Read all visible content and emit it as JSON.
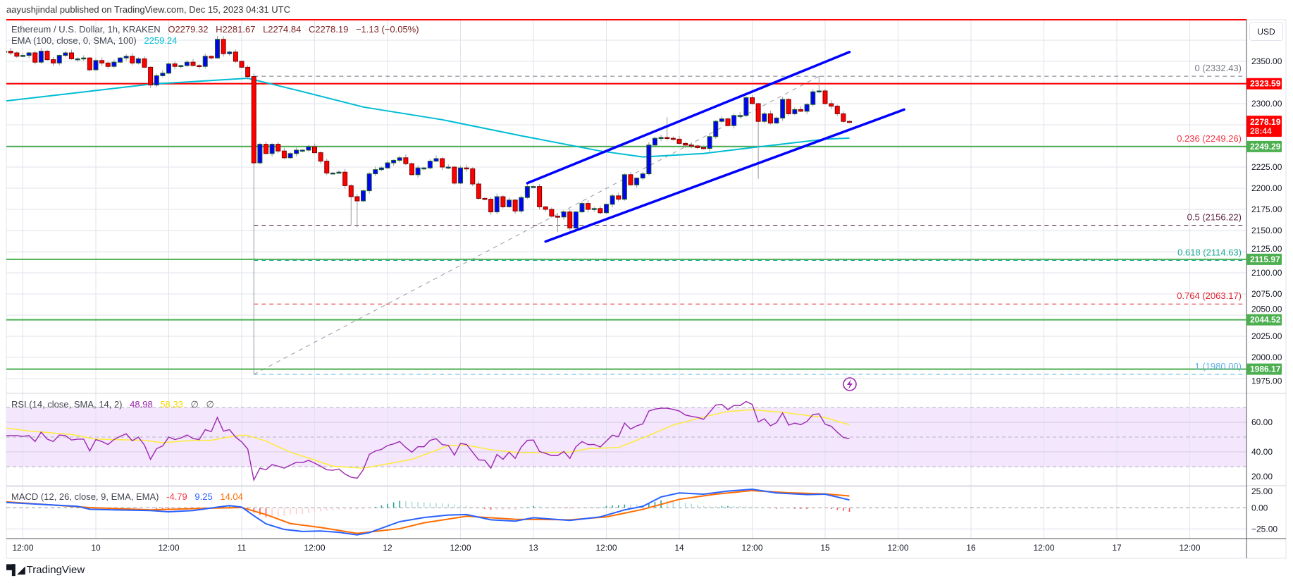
{
  "header": {
    "published": "aayushjindal published on TradingView.com, Dec 15, 2023 04:31 UTC"
  },
  "legend": {
    "symbol": "Ethereum / U.S. Dollar, 1h, KRAKEN",
    "open": "O2279.32",
    "high": "H2281.67",
    "low": "L2274.84",
    "close": "C2278.19",
    "change": "−1.13 (−0.05%)"
  },
  "ema_legend": {
    "label": "EMA (100, close, 0, SMA, 100)",
    "value": "2259.24"
  },
  "rsi_legend": {
    "label": "RSI (14, close, SMA, 14, 2)",
    "value": "48.98",
    "ma": "58.33",
    "extra1": "∅",
    "extra2": "∅"
  },
  "macd_legend": {
    "label": "MACD (12, 26, close, 9, EMA, EMA)",
    "hist": "-4.79",
    "macd": "9.25",
    "signal": "14.04"
  },
  "currency": "USD",
  "footer": {
    "brand": "TradingView",
    "logo_icon": "tradingview-logo"
  },
  "events_icon": "lightning-icon",
  "colors": {
    "up": "#0000ff",
    "down": "#ff0000",
    "ema": "#00bcd4",
    "channel": "#0000ff",
    "rsi": "#9c27b0",
    "rsi_ma": "#ffeb3b",
    "rsi_band": "#f3e6fd",
    "macd": "#2962ff",
    "signal": "#ff6d00",
    "hist_up": "#26a69a",
    "hist_up_weak": "#b2dfdb",
    "hist_down": "#ff5252",
    "hist_down_weak": "#ffcdd2",
    "grid": "#e0e3eb"
  },
  "chart_data": {
    "type": "candlestick",
    "title": "Ethereum / U.S. Dollar, 1h, KRAKEN",
    "y_ticks": [
      2350,
      2300,
      2225,
      2200,
      2175,
      2150,
      2125,
      2100,
      2075,
      2050,
      2025,
      2000,
      1975
    ],
    "x_tick_labels": [
      "12:00",
      "10",
      "12:00",
      "11",
      "12:00",
      "12",
      "12:00",
      "13",
      "12:00",
      "14",
      "12:00",
      "15",
      "12:00",
      "16",
      "12:00",
      "17",
      "12:00"
    ],
    "grid": true,
    "closes": [
      2362,
      2362,
      2360,
      2356,
      2357,
      2360,
      2349,
      2362,
      2352,
      2348,
      2357,
      2360,
      2353,
      2353,
      2354,
      2340,
      2351,
      2348,
      2344,
      2349,
      2354,
      2356,
      2348,
      2353,
      2343,
      2322,
      2333,
      2336,
      2347,
      2344,
      2345,
      2349,
      2345,
      2344,
      2356,
      2354,
      2376,
      2359,
      2361,
      2350,
      2343,
      2332,
      2230,
      2252,
      2241,
      2252,
      2244,
      2236,
      2241,
      2245,
      2245,
      2249,
      2242,
      2232,
      2218,
      2218,
      2219,
      2203,
      2190,
      2185,
      2197,
      2217,
      2222,
      2224,
      2230,
      2233,
      2236,
      2229,
      2216,
      2224,
      2224,
      2232,
      2235,
      2225,
      2225,
      2206,
      2224,
      2223,
      2205,
      2188,
      2187,
      2172,
      2190,
      2178,
      2186,
      2173,
      2189,
      2202,
      2202,
      2178,
      2175,
      2167,
      2166,
      2172,
      2153,
      2172,
      2182,
      2175,
      2176,
      2171,
      2181,
      2191,
      2187,
      2216,
      2204,
      2212,
      2217,
      2251,
      2259,
      2260,
      2259,
      2258,
      2253,
      2251,
      2250,
      2248,
      2247,
      2261,
      2279,
      2282,
      2274,
      2286,
      2286,
      2307,
      2300,
      2279,
      2288,
      2277,
      2283,
      2305,
      2288,
      2293,
      2291,
      2299,
      2314,
      2315,
      2300,
      2297,
      2288,
      2279,
      2278.19
    ],
    "notable_wicks": [
      {
        "time": "Dec 10 20:00",
        "high": 2380
      },
      {
        "time": "Dec 11 18:00",
        "low": 2156
      },
      {
        "time": "Dec 11 19:00",
        "low": 2154
      },
      {
        "time": "Dec 13 04:00",
        "low": 2148
      },
      {
        "time": "Dec 13 22:00",
        "high": 2284
      },
      {
        "time": "Dec 14 13:00",
        "low": 2211
      },
      {
        "time": "Dec 14 23:00",
        "high": 2332.43
      }
    ],
    "last_price": {
      "value": "2278.19",
      "countdown": "28:44"
    },
    "ema100": [
      {
        "t": "Dec 9 09:00",
        "v": 2303
      },
      {
        "t": "Dec 10 09:00",
        "v": 2323
      },
      {
        "t": "Dec 11 01:00",
        "v": 2330
      },
      {
        "t": "Dec 11 09:00",
        "v": 2316
      },
      {
        "t": "Dec 11 20:00",
        "v": 2296
      },
      {
        "t": "Dec 12 09:00",
        "v": 2281
      },
      {
        "t": "Dec 12 22:00",
        "v": 2262
      },
      {
        "t": "Dec 13 11:00",
        "v": 2244
      },
      {
        "t": "Dec 13 18:00",
        "v": 2237
      },
      {
        "t": "Dec 14 04:00",
        "v": 2241
      },
      {
        "t": "Dec 14 12:00",
        "v": 2248
      },
      {
        "t": "Dec 15 00:00",
        "v": 2258
      },
      {
        "t": "Dec 15 04:00",
        "v": 2259.24
      }
    ],
    "horizontal_lines": [
      {
        "price": 2323.59,
        "label": "2323.59",
        "color": "#ff0000"
      },
      {
        "price": 2249.29,
        "label": "2249.29",
        "color": "#4caf50"
      },
      {
        "price": 2115.97,
        "label": "2115.97",
        "color": "#4caf50"
      },
      {
        "price": 2044.52,
        "label": "2044.52",
        "color": "#4caf50"
      },
      {
        "price": 1986.17,
        "label": "1986.17",
        "color": "#4caf50"
      }
    ],
    "fibonacci": {
      "from": {
        "t": "Dec 11 02:00",
        "price": 1980.0
      },
      "to": {
        "t": "Dec 14 23:00",
        "price": 2332.43
      },
      "levels": [
        {
          "label": "0 (2332.43)",
          "price": 2332.43,
          "color": "#787b86"
        },
        {
          "label": "0.236 (2249.26)",
          "price": 2249.26,
          "color": "#f23645"
        },
        {
          "label": "0.5 (2156.22)",
          "price": 2156.22,
          "color": "#5d2340"
        },
        {
          "label": "0.618 (2114.63)",
          "price": 2114.63,
          "color": "#22ab94"
        },
        {
          "label": "0.764 (2063.17)",
          "price": 2063.17,
          "color": "#e0242f"
        },
        {
          "label": "1 (1980.00)",
          "price": 1980.0,
          "color": "#5fb0e6"
        }
      ]
    },
    "channel": {
      "upper": [
        {
          "t": "Dec 12 23:00",
          "price": 2206
        },
        {
          "t": "Dec 15 04:00",
          "price": 2361
        }
      ],
      "lower": [
        {
          "t": "Dec 13 02:00",
          "price": 2137
        },
        {
          "t": "Dec 15 13:00",
          "price": 2293
        }
      ]
    },
    "rsi": {
      "ticks": [
        60,
        40,
        20
      ],
      "bands": [
        70,
        50,
        30
      ],
      "values": [
        51,
        51,
        51,
        50.5,
        51,
        47,
        53.3,
        48.6,
        47,
        51.4,
        51,
        48,
        48.6,
        48.6,
        40.6,
        48.3,
        47,
        45,
        48.3,
        50.5,
        52.2,
        47.5,
        50,
        44.6,
        35,
        42.2,
        44,
        50,
        48.3,
        49.4,
        51.4,
        49,
        48.3,
        55,
        53.7,
        63.3,
        54,
        55,
        50,
        46.7,
        41.9,
        21,
        29,
        27.9,
        31.4,
        30.3,
        29,
        31,
        33,
        32.7,
        34.3,
        32.4,
        30.3,
        27.9,
        27.6,
        28.4,
        25,
        22.9,
        22.2,
        27.9,
        38.3,
        40.6,
        41.7,
        44.3,
        45.4,
        47,
        43,
        39.8,
        43.5,
        43.5,
        47.8,
        48.9,
        44.9,
        44.4,
        37.8,
        45.7,
        45,
        39.8,
        34.6,
        34.3,
        29,
        38.3,
        35,
        39.8,
        35.6,
        43.3,
        47.8,
        48,
        40.3,
        39,
        37.5,
        37.5,
        40.3,
        35.6,
        43.5,
        47,
        44.9,
        45,
        43.3,
        47.3,
        51.3,
        50.2,
        59.4,
        55.4,
        57.6,
        58.9,
        67.6,
        68.9,
        69.5,
        69.5,
        68.7,
        67.6,
        64.9,
        64,
        63.3,
        62,
        66.8,
        71.6,
        72.1,
        68.6,
        71.4,
        71.3,
        74,
        72,
        60.2,
        62.4,
        57.6,
        59.7,
        66.3,
        58.1,
        59.4,
        58.4,
        60.5,
        65.2,
        65.7,
        58.7,
        57.3,
        53.3,
        49.7,
        48.98
      ],
      "ma": [
        {
          "t": "Dec 9 09:00",
          "v": 56.2
        },
        {
          "t": "Dec 9 13:00",
          "v": 54.1
        },
        {
          "t": "Dec 9 20:00",
          "v": 51.7
        },
        {
          "t": "Dec 10 00:00",
          "v": 48.6
        },
        {
          "t": "Dec 10 05:00",
          "v": 48.1
        },
        {
          "t": "Dec 10 08:00",
          "v": 47.8
        },
        {
          "t": "Dec 10 11:00",
          "v": 46.2
        },
        {
          "t": "Dec 10 16:00",
          "v": 47.8
        },
        {
          "t": "Dec 10 19:00",
          "v": 47.8
        },
        {
          "t": "Dec 10 21:00",
          "v": 49.4
        },
        {
          "t": "Dec 11 00:00",
          "v": 51.3
        },
        {
          "t": "Dec 11 01:00",
          "v": 51
        },
        {
          "t": "Dec 11 04:00",
          "v": 47.3
        },
        {
          "t": "Dec 11 08:00",
          "v": 39.8
        },
        {
          "t": "Dec 11 11:00",
          "v": 35.9
        },
        {
          "t": "Dec 11 15:00",
          "v": 30.3
        },
        {
          "t": "Dec 11 20:00",
          "v": 29
        },
        {
          "t": "Dec 12 00:00",
          "v": 31.9
        },
        {
          "t": "Dec 12 04:00",
          "v": 35
        },
        {
          "t": "Dec 12 08:00",
          "v": 41
        },
        {
          "t": "Dec 12 10:00",
          "v": 44.3
        },
        {
          "t": "Dec 12 13:00",
          "v": 44.6
        },
        {
          "t": "Dec 12 17:00",
          "v": 41.4
        },
        {
          "t": "Dec 12 22:00",
          "v": 39.4
        },
        {
          "t": "Dec 13 06:00",
          "v": 39.8
        },
        {
          "t": "Dec 13 09:00",
          "v": 42.2
        },
        {
          "t": "Dec 13 14:00",
          "v": 43
        },
        {
          "t": "Dec 13 18:00",
          "v": 49.4
        },
        {
          "t": "Dec 13 23:00",
          "v": 58.1
        },
        {
          "t": "Dec 14 04:00",
          "v": 63.6
        },
        {
          "t": "Dec 14 08:00",
          "v": 67.3
        },
        {
          "t": "Dec 14 12:00",
          "v": 68.4
        },
        {
          "t": "Dec 14 17:00",
          "v": 66.8
        },
        {
          "t": "Dec 14 22:00",
          "v": 64.1
        },
        {
          "t": "Dec 15 00:00",
          "v": 63.2
        },
        {
          "t": "Dec 15 04:00",
          "v": 58.33
        }
      ]
    },
    "macd": {
      "ticks": [
        25,
        0,
        -25
      ],
      "macd": [
        {
          "t": "Dec 9 09:00",
          "v": 6.4
        },
        {
          "t": "Dec 9 21:00",
          "v": 1.7
        },
        {
          "t": "Dec 9 23:00",
          "v": -1.7
        },
        {
          "t": "Dec 10 03:00",
          "v": -2.5
        },
        {
          "t": "Dec 10 09:00",
          "v": -3.3
        },
        {
          "t": "Dec 10 12:00",
          "v": -4.7
        },
        {
          "t": "Dec 10 16:00",
          "v": -3.3
        },
        {
          "t": "Dec 10 20:00",
          "v": 0.8
        },
        {
          "t": "Dec 10 22:00",
          "v": 2.5
        },
        {
          "t": "Dec 11 00:00",
          "v": 0.8
        },
        {
          "t": "Dec 11 02:00",
          "v": -9.4
        },
        {
          "t": "Dec 11 04:00",
          "v": -19
        },
        {
          "t": "Dec 11 07:00",
          "v": -25.6
        },
        {
          "t": "Dec 11 10:00",
          "v": -28
        },
        {
          "t": "Dec 11 13:00",
          "v": -27.5
        },
        {
          "t": "Dec 11 16:00",
          "v": -29
        },
        {
          "t": "Dec 11 19:00",
          "v": -32
        },
        {
          "t": "Dec 11 21:00",
          "v": -29.4
        },
        {
          "t": "Dec 12 02:00",
          "v": -16.4
        },
        {
          "t": "Dec 12 06:00",
          "v": -11.5
        },
        {
          "t": "Dec 12 10:00",
          "v": -8.6
        },
        {
          "t": "Dec 12 13:00",
          "v": -8
        },
        {
          "t": "Dec 12 17:00",
          "v": -14.2
        },
        {
          "t": "Dec 12 21:00",
          "v": -15.8
        },
        {
          "t": "Dec 13 00:00",
          "v": -11.7
        },
        {
          "t": "Dec 13 06:00",
          "v": -15
        },
        {
          "t": "Dec 13 11:00",
          "v": -10.8
        },
        {
          "t": "Dec 13 15:00",
          "v": -2.5
        },
        {
          "t": "Dec 13 18:00",
          "v": 1.7
        },
        {
          "t": "Dec 13 21:00",
          "v": 12.8
        },
        {
          "t": "Dec 14 00:00",
          "v": 17.5
        },
        {
          "t": "Dec 14 04:00",
          "v": 16.1
        },
        {
          "t": "Dec 14 08:00",
          "v": 19.7
        },
        {
          "t": "Dec 14 12:00",
          "v": 21.9
        },
        {
          "t": "Dec 14 16:00",
          "v": 17.5
        },
        {
          "t": "Dec 14 21:00",
          "v": 15.6
        },
        {
          "t": "Dec 15 00:00",
          "v": 16.1
        },
        {
          "t": "Dec 15 04:00",
          "v": 9.25
        }
      ],
      "signal": [
        {
          "t": "Dec 9 09:00",
          "v": 7.2
        },
        {
          "t": "Dec 9 23:00",
          "v": 0.3
        },
        {
          "t": "Dec 10 09:00",
          "v": -2.5
        },
        {
          "t": "Dec 10 18:00",
          "v": -0.6
        },
        {
          "t": "Dec 11 00:00",
          "v": 0.3
        },
        {
          "t": "Dec 11 04:00",
          "v": -8
        },
        {
          "t": "Dec 11 08:00",
          "v": -18.6
        },
        {
          "t": "Dec 11 13:00",
          "v": -23.3
        },
        {
          "t": "Dec 11 19:00",
          "v": -30.3
        },
        {
          "t": "Dec 12 02:00",
          "v": -24.7
        },
        {
          "t": "Dec 12 06:00",
          "v": -17.8
        },
        {
          "t": "Dec 12 13:00",
          "v": -10
        },
        {
          "t": "Dec 12 21:00",
          "v": -13.6
        },
        {
          "t": "Dec 13 06:00",
          "v": -14.2
        },
        {
          "t": "Dec 13 12:00",
          "v": -10.8
        },
        {
          "t": "Dec 13 18:00",
          "v": -1.9
        },
        {
          "t": "Dec 14 00:00",
          "v": 10
        },
        {
          "t": "Dec 14 06:00",
          "v": 16.1
        },
        {
          "t": "Dec 14 12:00",
          "v": 20.3
        },
        {
          "t": "Dec 14 18:00",
          "v": 17.8
        },
        {
          "t": "Dec 15 00:00",
          "v": 16.4
        },
        {
          "t": "Dec 15 04:00",
          "v": 14.04
        }
      ]
    }
  }
}
